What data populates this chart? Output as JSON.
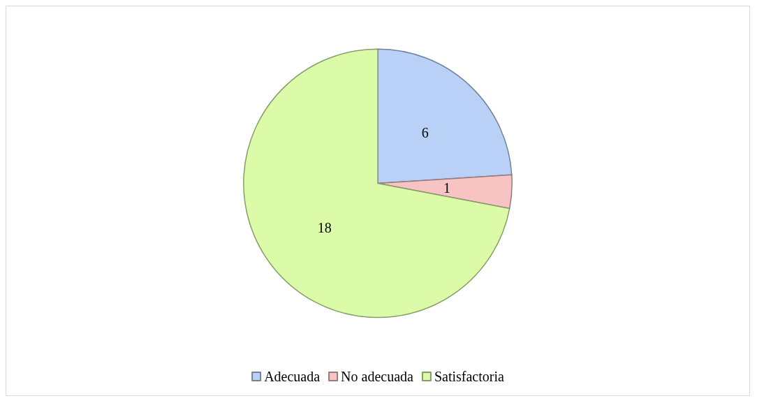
{
  "chart_data": {
    "type": "pie",
    "categories": [
      "Adecuada",
      "No adecuada",
      "Satisfactoria"
    ],
    "values": [
      6,
      1,
      18
    ],
    "colors": [
      "#b9d1f7",
      "#f7c3c3",
      "#dcfba8"
    ],
    "data_labels": true,
    "legend": "bottom"
  }
}
